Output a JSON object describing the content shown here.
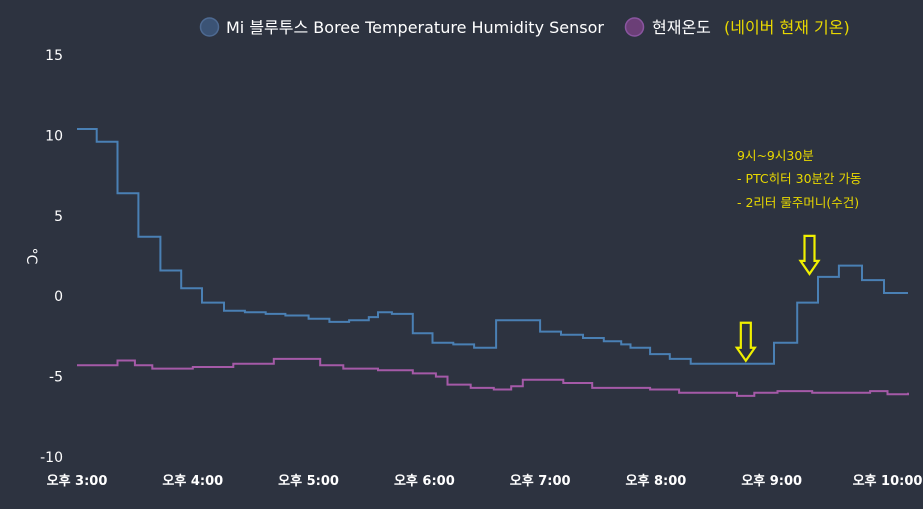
{
  "chart_data": {
    "type": "line",
    "step": true,
    "ylabel": "°C",
    "ylim": [
      -10,
      15
    ],
    "yticks": [
      15,
      10,
      5,
      0,
      -5,
      -10
    ],
    "xlim": [
      15.0,
      22.0
    ],
    "xticks": [
      {
        "value": 15,
        "label": "오후 3:00"
      },
      {
        "value": 16,
        "label": "오후 4:00"
      },
      {
        "value": 17,
        "label": "오후 5:00"
      },
      {
        "value": 18,
        "label": "오후 6:00"
      },
      {
        "value": 19,
        "label": "오후 7:00"
      },
      {
        "value": 20,
        "label": "오후 8:00"
      },
      {
        "value": 21,
        "label": "오후 9:00"
      },
      {
        "value": 22,
        "label": "오후 10:00"
      }
    ],
    "legend_position": "top-right",
    "series": [
      {
        "name": "Mi 블루투스 Boree Temperature Humidity Sensor",
        "color": "#4a80b4",
        "marker_color": "#3b5375",
        "points": [
          [
            15.0,
            10.4
          ],
          [
            15.17,
            9.6
          ],
          [
            15.35,
            6.4
          ],
          [
            15.53,
            3.7
          ],
          [
            15.72,
            1.6
          ],
          [
            15.9,
            0.5
          ],
          [
            16.08,
            -0.4
          ],
          [
            16.27,
            -0.9
          ],
          [
            16.45,
            -1.0
          ],
          [
            16.63,
            -1.1
          ],
          [
            16.8,
            -1.2
          ],
          [
            17.0,
            -1.4
          ],
          [
            17.18,
            -1.6
          ],
          [
            17.35,
            -1.5
          ],
          [
            17.52,
            -1.3
          ],
          [
            17.6,
            -1.0
          ],
          [
            17.72,
            -1.1
          ],
          [
            17.9,
            -2.3
          ],
          [
            18.07,
            -2.9
          ],
          [
            18.25,
            -3.0
          ],
          [
            18.43,
            -3.2
          ],
          [
            18.62,
            -1.5
          ],
          [
            19.0,
            -2.2
          ],
          [
            19.18,
            -2.4
          ],
          [
            19.37,
            -2.6
          ],
          [
            19.55,
            -2.8
          ],
          [
            19.7,
            -3.0
          ],
          [
            19.78,
            -3.2
          ],
          [
            19.95,
            -3.6
          ],
          [
            20.12,
            -3.9
          ],
          [
            20.3,
            -4.2
          ],
          [
            20.5,
            -4.2
          ],
          [
            20.7,
            -4.2
          ],
          [
            20.88,
            -4.2
          ],
          [
            21.02,
            -2.9
          ],
          [
            21.22,
            -0.4
          ],
          [
            21.4,
            1.2
          ],
          [
            21.58,
            1.9
          ],
          [
            21.78,
            1.0
          ],
          [
            21.97,
            0.2
          ],
          [
            22.3,
            0.2
          ]
        ]
      },
      {
        "name": "현재온도",
        "name_suffix": "(네이버 현재 기온)",
        "color": "#a55aa8",
        "marker_color": "#6b3f77",
        "points": [
          [
            15.0,
            -4.3
          ],
          [
            15.35,
            -4.0
          ],
          [
            15.5,
            -4.3
          ],
          [
            15.65,
            -4.5
          ],
          [
            16.0,
            -4.4
          ],
          [
            16.35,
            -4.2
          ],
          [
            16.7,
            -3.9
          ],
          [
            17.1,
            -4.3
          ],
          [
            17.3,
            -4.5
          ],
          [
            17.6,
            -4.6
          ],
          [
            17.9,
            -4.8
          ],
          [
            18.1,
            -5.0
          ],
          [
            18.2,
            -5.5
          ],
          [
            18.4,
            -5.7
          ],
          [
            18.6,
            -5.8
          ],
          [
            18.75,
            -5.6
          ],
          [
            18.85,
            -5.2
          ],
          [
            19.2,
            -5.4
          ],
          [
            19.45,
            -5.7
          ],
          [
            19.75,
            -5.7
          ],
          [
            19.95,
            -5.8
          ],
          [
            20.2,
            -6.0
          ],
          [
            20.5,
            -6.0
          ],
          [
            20.7,
            -6.2
          ],
          [
            20.85,
            -6.0
          ],
          [
            21.05,
            -5.9
          ],
          [
            21.35,
            -6.0
          ],
          [
            21.75,
            -6.0
          ],
          [
            21.85,
            -5.9
          ],
          [
            22.0,
            -6.1
          ],
          [
            22.25,
            -6.0
          ]
        ]
      }
    ],
    "annotation": {
      "lines": [
        "9시~9시30분",
        "- PTC히터 30분간 가동",
        "- 2리터 물주머니(수건)"
      ],
      "arrow_color": "#f0f000",
      "arrows": [
        {
          "x": 20.88,
          "y": -4.2
        },
        {
          "x": 21.43,
          "y": 1.2
        }
      ]
    }
  }
}
